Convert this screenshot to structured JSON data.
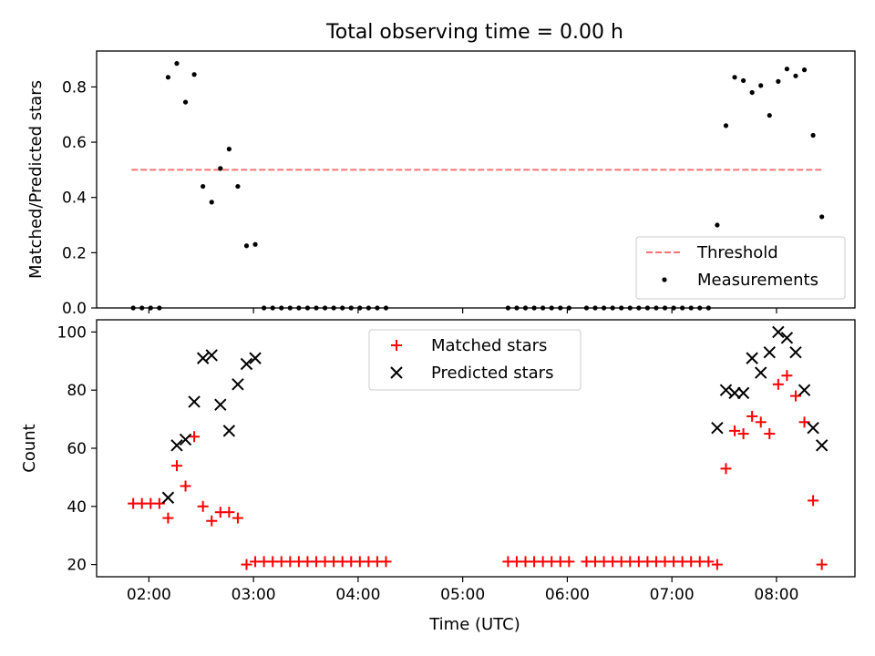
{
  "figure_title": "Total observing time = 0.00 h",
  "chart_data": [
    {
      "type": "scatter",
      "ylabel": "Matched/Predicted stars",
      "xlabel": "",
      "xlim": [
        "01:30",
        "08:45"
      ],
      "ylim": [
        0,
        0.93
      ],
      "yticks": [
        0.0,
        0.2,
        0.4,
        0.6,
        0.8
      ],
      "ytick_labels": [
        "0.0",
        "0.2",
        "0.4",
        "0.6",
        "0.8"
      ],
      "xticks": [
        "02:00",
        "03:00",
        "04:00",
        "05:00",
        "06:00",
        "07:00",
        "08:00"
      ],
      "show_xtick_labels": false,
      "grid": false,
      "legend_position": "lower-right",
      "threshold": {
        "name": "Threshold",
        "value": 0.5,
        "x_start": "01:50",
        "x_end": "08:26",
        "color": "#f87474"
      },
      "series": [
        {
          "name": "Measurements",
          "color": "#000000",
          "x": [
            "01:51",
            "01:56",
            "02:01",
            "02:06",
            "02:11",
            "02:16",
            "02:21",
            "02:26",
            "02:31",
            "02:36",
            "02:41",
            "02:46",
            "02:51",
            "02:56",
            "03:01",
            "03:06",
            "03:11",
            "03:16",
            "03:21",
            "03:26",
            "03:31",
            "03:36",
            "03:41",
            "03:46",
            "03:51",
            "03:56",
            "04:01",
            "04:06",
            "04:11",
            "04:16",
            "05:26",
            "05:31",
            "05:36",
            "05:41",
            "05:46",
            "05:51",
            "05:56",
            "06:01",
            "06:11",
            "06:16",
            "06:21",
            "06:26",
            "06:31",
            "06:36",
            "06:41",
            "06:46",
            "06:51",
            "06:56",
            "07:01",
            "07:06",
            "07:11",
            "07:16",
            "07:21",
            "07:26",
            "07:31",
            "07:36",
            "07:41",
            "07:46",
            "07:51",
            "07:56",
            "08:01",
            "08:06",
            "08:11",
            "08:16",
            "08:21",
            "08:26"
          ],
          "y": [
            0,
            0,
            0,
            0,
            0.835,
            0.885,
            0.745,
            0.845,
            0.44,
            0.383,
            0.505,
            0.575,
            0.44,
            0.225,
            0.23,
            0,
            0,
            0,
            0,
            0,
            0,
            0,
            0,
            0,
            0,
            0,
            0,
            0,
            0,
            0,
            0,
            0,
            0,
            0,
            0,
            0,
            0,
            0,
            0,
            0,
            0,
            0,
            0,
            0,
            0,
            0,
            0,
            0,
            0,
            0,
            0,
            0,
            0,
            0.3,
            0.66,
            0.835,
            0.823,
            0.78,
            0.805,
            0.697,
            0.82,
            0.865,
            0.84,
            0.862,
            0.625,
            0.33
          ]
        }
      ]
    },
    {
      "type": "scatter",
      "ylabel": "Count",
      "xlabel": "Time (UTC)",
      "xlim": [
        "01:30",
        "08:45"
      ],
      "ylim": [
        15.8,
        104.2
      ],
      "yticks": [
        20,
        40,
        60,
        80,
        100
      ],
      "xticks": [
        "02:00",
        "03:00",
        "04:00",
        "05:00",
        "06:00",
        "07:00",
        "08:00"
      ],
      "grid": false,
      "legend_position": "upper-center",
      "series": [
        {
          "name": "Matched stars",
          "color": "#ff0000",
          "marker": "+",
          "x": [
            "01:51",
            "01:56",
            "02:01",
            "02:06",
            "02:11",
            "02:16",
            "02:21",
            "02:26",
            "02:31",
            "02:36",
            "02:41",
            "02:46",
            "02:51",
            "02:56",
            "03:01",
            "03:06",
            "03:11",
            "03:16",
            "03:21",
            "03:26",
            "03:31",
            "03:36",
            "03:41",
            "03:46",
            "03:51",
            "03:56",
            "04:01",
            "04:06",
            "04:11",
            "04:16",
            "05:26",
            "05:31",
            "05:36",
            "05:41",
            "05:46",
            "05:51",
            "05:56",
            "06:01",
            "06:11",
            "06:16",
            "06:21",
            "06:26",
            "06:31",
            "06:36",
            "06:41",
            "06:46",
            "06:51",
            "06:56",
            "07:01",
            "07:06",
            "07:11",
            "07:16",
            "07:21",
            "07:26",
            "07:31",
            "07:36",
            "07:41",
            "07:46",
            "07:51",
            "07:56",
            "08:01",
            "08:06",
            "08:11",
            "08:16",
            "08:21",
            "08:26"
          ],
          "y": [
            41,
            41,
            41,
            41,
            36,
            54,
            47,
            64,
            40,
            35,
            38,
            38,
            36,
            20,
            21,
            21,
            21,
            21,
            21,
            21,
            21,
            21,
            21,
            21,
            21,
            21,
            21,
            21,
            21,
            21,
            21,
            21,
            21,
            21,
            21,
            21,
            21,
            21,
            21,
            21,
            21,
            21,
            21,
            21,
            21,
            21,
            21,
            21,
            21,
            21,
            21,
            21,
            21,
            20,
            53,
            66,
            65,
            71,
            69,
            65,
            82,
            85,
            78,
            69,
            42,
            20
          ]
        },
        {
          "name": "Predicted stars",
          "color": "#000000",
          "marker": "x",
          "x": [
            "02:11",
            "02:16",
            "02:21",
            "02:26",
            "02:31",
            "02:36",
            "02:41",
            "02:46",
            "02:51",
            "02:56",
            "03:01",
            "07:26",
            "07:31",
            "07:36",
            "07:41",
            "07:46",
            "07:51",
            "07:56",
            "08:01",
            "08:06",
            "08:11",
            "08:16",
            "08:21",
            "08:26"
          ],
          "y": [
            43,
            61,
            63,
            76,
            91,
            92,
            75,
            66,
            82,
            89,
            91,
            67,
            80,
            79,
            79,
            91,
            86,
            93,
            100,
            98,
            93,
            80,
            67,
            61
          ]
        }
      ]
    }
  ]
}
